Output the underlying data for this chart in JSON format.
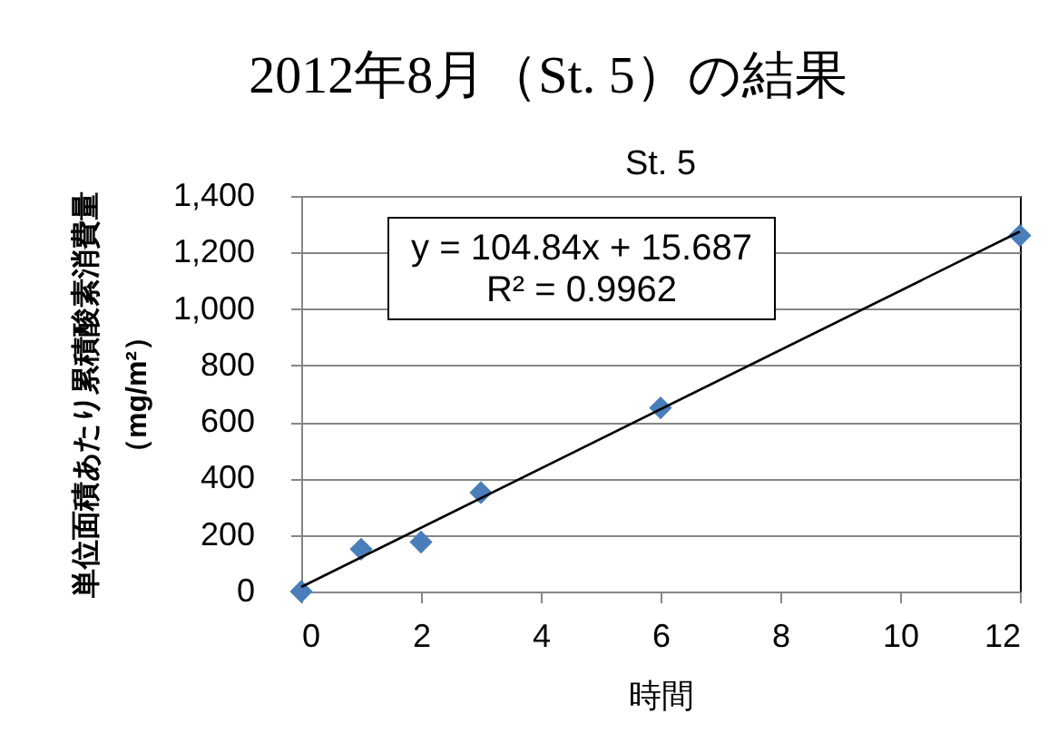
{
  "chart_data": {
    "type": "scatter",
    "title": "2012年8月（St. 5）の結果",
    "subtitle": "St. 5",
    "xlabel": "時間",
    "ylabel": "単位面積あたり累積酸素消費量（mg/m²）",
    "x": [
      0,
      1,
      2,
      3,
      6,
      12
    ],
    "series": [
      {
        "type": "scatter",
        "color": "#4a7ebb",
        "marker": "diamond",
        "values": [
          0,
          150,
          175,
          350,
          650,
          1260
        ]
      },
      {
        "type": "line",
        "color": "#000000",
        "x": [
          0,
          12
        ],
        "values": [
          16,
          1274
        ],
        "marker": "none",
        "line_style": "solid"
      }
    ],
    "xlim": [
      0,
      12
    ],
    "xticks": [
      0,
      2,
      4,
      6,
      8,
      10,
      12
    ],
    "ylim": [
      0,
      1400
    ],
    "yticks": [
      0,
      200,
      400,
      600,
      800,
      {
        "value": 1000,
        "label": "1,000"
      },
      {
        "value": 1200,
        "label": "1,200"
      },
      {
        "value": 1400,
        "label": "1,400"
      }
    ],
    "grid": "y",
    "annotations": [
      "y = 104.84x + 15.687",
      "R² = 0.9962"
    ]
  }
}
